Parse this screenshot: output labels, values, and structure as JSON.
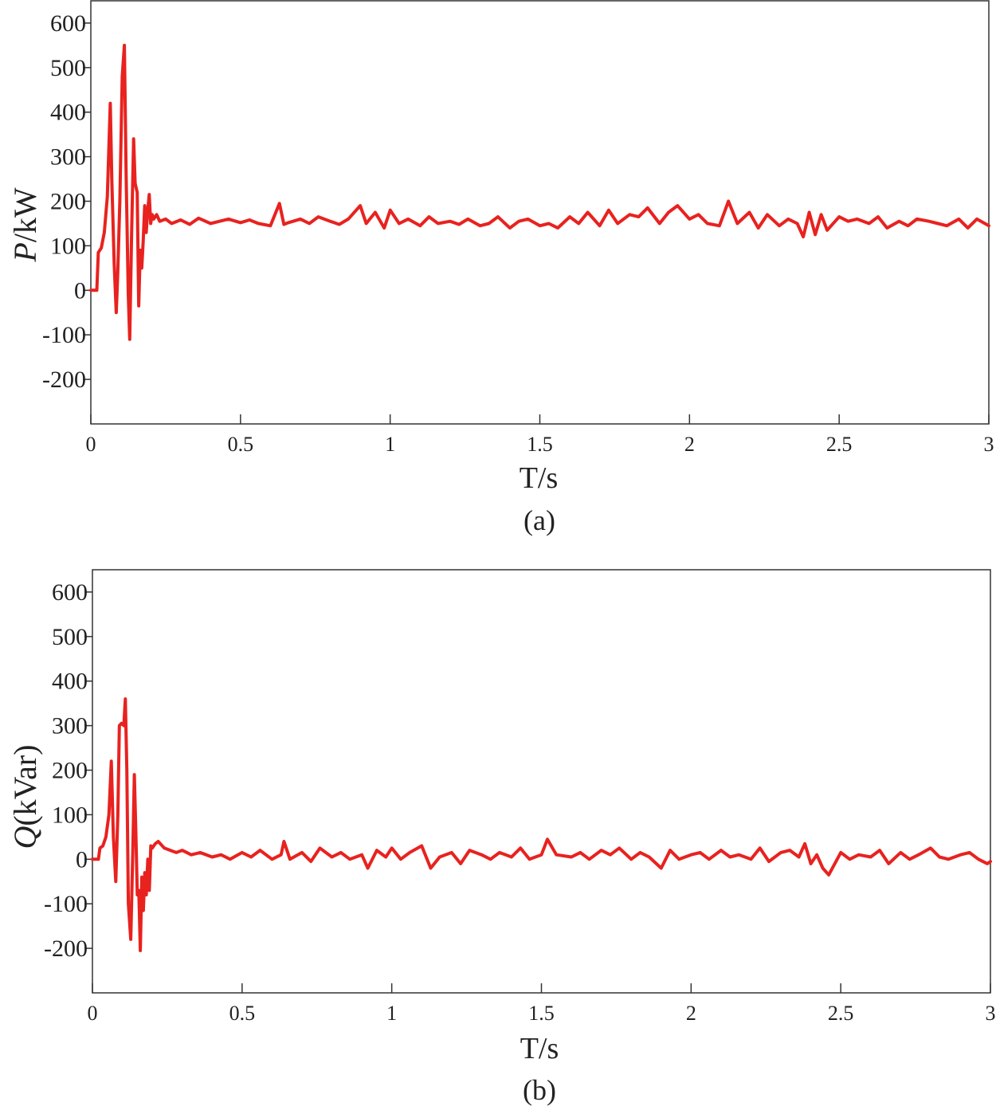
{
  "chart_data": [
    {
      "type": "line",
      "caption": "(a)",
      "xlabel": "T/s",
      "ylabel_italic": "P",
      "ylabel_rest": "/kW",
      "xlim": [
        0,
        3
      ],
      "ylim": [
        -300,
        650
      ],
      "xticks": [
        0,
        0.5,
        1,
        1.5,
        2,
        2.5,
        3
      ],
      "xtick_labels": [
        "0",
        "0.5",
        "1",
        "1.5",
        "2",
        "2.5",
        "3"
      ],
      "yticks": [
        -200,
        -100,
        0,
        100,
        200,
        300,
        400,
        500,
        600
      ],
      "ytick_labels": [
        "-200",
        "-100",
        "0",
        "100",
        "200",
        "300",
        "400",
        "500",
        "600"
      ],
      "grid": false,
      "series": [
        {
          "color": "#e8221f",
          "x": [
            0,
            0.02,
            0.025,
            0.035,
            0.045,
            0.055,
            0.065,
            0.07,
            0.078,
            0.085,
            0.09,
            0.097,
            0.105,
            0.112,
            0.118,
            0.125,
            0.13,
            0.136,
            0.143,
            0.148,
            0.155,
            0.16,
            0.165,
            0.17,
            0.175,
            0.18,
            0.185,
            0.19,
            0.195,
            0.2,
            0.205,
            0.21,
            0.215,
            0.22,
            0.23,
            0.25,
            0.27,
            0.3,
            0.33,
            0.36,
            0.4,
            0.43,
            0.46,
            0.5,
            0.53,
            0.56,
            0.6,
            0.63,
            0.645,
            0.66,
            0.7,
            0.73,
            0.76,
            0.8,
            0.83,
            0.86,
            0.9,
            0.92,
            0.95,
            0.98,
            1.0,
            1.03,
            1.06,
            1.1,
            1.13,
            1.16,
            1.2,
            1.23,
            1.26,
            1.3,
            1.33,
            1.36,
            1.4,
            1.43,
            1.46,
            1.5,
            1.53,
            1.56,
            1.6,
            1.63,
            1.66,
            1.7,
            1.73,
            1.76,
            1.8,
            1.83,
            1.86,
            1.9,
            1.93,
            1.96,
            2.0,
            2.03,
            2.06,
            2.1,
            2.13,
            2.16,
            2.2,
            2.23,
            2.26,
            2.3,
            2.33,
            2.36,
            2.38,
            2.4,
            2.42,
            2.44,
            2.46,
            2.5,
            2.53,
            2.56,
            2.6,
            2.63,
            2.66,
            2.7,
            2.73,
            2.76,
            2.8,
            2.83,
            2.86,
            2.9,
            2.93,
            2.96,
            3.0
          ],
          "y": [
            0,
            0,
            85,
            95,
            130,
            210,
            420,
            250,
            60,
            -50,
            40,
            200,
            480,
            550,
            260,
            -10,
            -110,
            120,
            340,
            240,
            220,
            -35,
            90,
            50,
            110,
            190,
            130,
            180,
            215,
            150,
            170,
            160,
            165,
            170,
            155,
            160,
            150,
            158,
            148,
            162,
            150,
            155,
            160,
            152,
            158,
            150,
            145,
            195,
            148,
            152,
            160,
            150,
            165,
            155,
            148,
            160,
            190,
            150,
            175,
            140,
            180,
            150,
            160,
            145,
            165,
            150,
            155,
            148,
            160,
            145,
            150,
            165,
            140,
            155,
            160,
            145,
            150,
            140,
            165,
            150,
            175,
            145,
            180,
            150,
            170,
            165,
            185,
            150,
            175,
            190,
            160,
            170,
            150,
            145,
            200,
            150,
            175,
            140,
            170,
            145,
            160,
            150,
            120,
            175,
            125,
            170,
            135,
            165,
            155,
            160,
            150,
            165,
            140,
            155,
            145,
            160,
            155,
            150,
            145,
            160,
            140,
            160,
            145
          ]
        }
      ]
    },
    {
      "type": "line",
      "caption": "(b)",
      "xlabel": "T/s",
      "ylabel_italic": "Q",
      "ylabel_rest": "(kVar)",
      "xlim": [
        0,
        3
      ],
      "ylim": [
        -300,
        650
      ],
      "xticks": [
        0,
        0.5,
        1,
        1.5,
        2,
        2.5,
        3
      ],
      "xtick_labels": [
        "0",
        "0.5",
        "1",
        "1.5",
        "2",
        "2.5",
        "3"
      ],
      "yticks": [
        -200,
        -100,
        0,
        100,
        200,
        300,
        400,
        500,
        600
      ],
      "ytick_labels": [
        "-200",
        "-100",
        "0",
        "100",
        "200",
        "300",
        "400",
        "500",
        "600"
      ],
      "grid": false,
      "series": [
        {
          "color": "#e8221f",
          "x": [
            0,
            0.02,
            0.025,
            0.035,
            0.045,
            0.055,
            0.063,
            0.07,
            0.078,
            0.085,
            0.09,
            0.097,
            0.105,
            0.11,
            0.115,
            0.12,
            0.128,
            0.135,
            0.14,
            0.145,
            0.15,
            0.155,
            0.16,
            0.165,
            0.17,
            0.175,
            0.18,
            0.185,
            0.19,
            0.195,
            0.2,
            0.21,
            0.22,
            0.24,
            0.26,
            0.28,
            0.3,
            0.33,
            0.36,
            0.4,
            0.43,
            0.46,
            0.5,
            0.53,
            0.56,
            0.6,
            0.63,
            0.64,
            0.66,
            0.7,
            0.73,
            0.76,
            0.8,
            0.83,
            0.86,
            0.9,
            0.92,
            0.95,
            0.98,
            1.0,
            1.03,
            1.06,
            1.1,
            1.13,
            1.16,
            1.2,
            1.23,
            1.26,
            1.3,
            1.33,
            1.36,
            1.4,
            1.43,
            1.46,
            1.5,
            1.52,
            1.55,
            1.6,
            1.63,
            1.66,
            1.7,
            1.73,
            1.76,
            1.8,
            1.83,
            1.86,
            1.9,
            1.93,
            1.96,
            2.0,
            2.03,
            2.06,
            2.1,
            2.13,
            2.16,
            2.2,
            2.23,
            2.26,
            2.3,
            2.33,
            2.36,
            2.38,
            2.4,
            2.42,
            2.44,
            2.46,
            2.5,
            2.53,
            2.56,
            2.6,
            2.63,
            2.66,
            2.7,
            2.73,
            2.76,
            2.8,
            2.83,
            2.86,
            2.9,
            2.93,
            2.96,
            2.99,
            3.0
          ],
          "y": [
            0,
            0,
            25,
            30,
            50,
            100,
            220,
            50,
            -50,
            100,
            300,
            305,
            300,
            360,
            200,
            -100,
            -180,
            20,
            190,
            60,
            -80,
            -70,
            -205,
            -40,
            -115,
            -30,
            -80,
            0,
            -70,
            30,
            25,
            35,
            40,
            25,
            20,
            15,
            20,
            10,
            15,
            5,
            10,
            0,
            15,
            5,
            20,
            0,
            10,
            40,
            0,
            15,
            -5,
            25,
            5,
            15,
            0,
            10,
            -20,
            20,
            5,
            25,
            0,
            15,
            30,
            -20,
            5,
            15,
            -10,
            20,
            10,
            0,
            15,
            5,
            25,
            0,
            10,
            45,
            10,
            5,
            15,
            0,
            20,
            10,
            25,
            0,
            15,
            5,
            -20,
            20,
            0,
            10,
            15,
            0,
            20,
            5,
            10,
            0,
            25,
            -5,
            15,
            20,
            5,
            35,
            -10,
            10,
            -20,
            -35,
            15,
            0,
            10,
            5,
            20,
            -10,
            15,
            0,
            10,
            25,
            5,
            0,
            10,
            15,
            0,
            -10,
            -5
          ]
        }
      ]
    }
  ]
}
